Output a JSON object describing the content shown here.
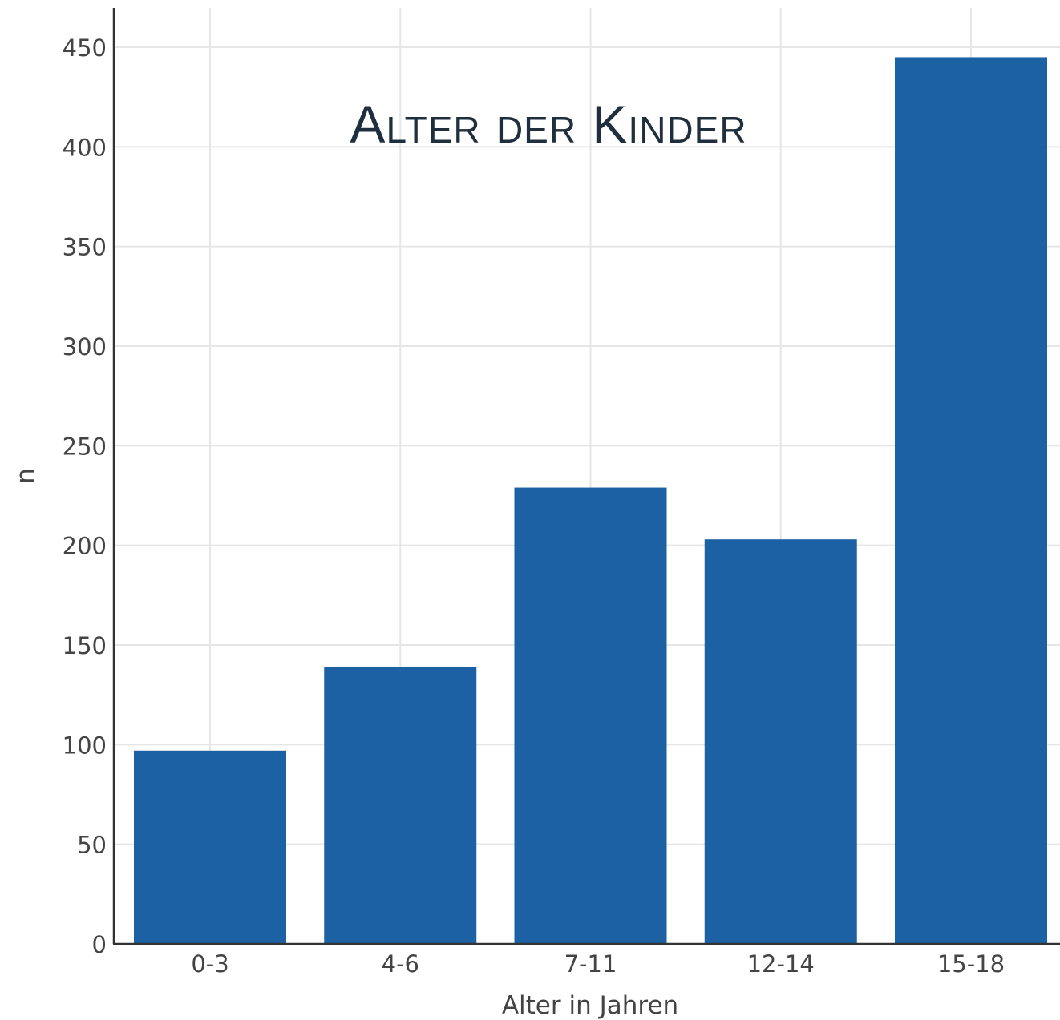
{
  "chart_data": {
    "type": "bar",
    "title": "Alter der Kinder",
    "xlabel": "Alter in Jahren",
    "ylabel": "n",
    "categories": [
      "0-3",
      "4-6",
      "7-11",
      "12-14",
      "15-18"
    ],
    "values": [
      97,
      139,
      229,
      203,
      445
    ],
    "ylim": [
      0,
      470
    ],
    "yticks": [
      0,
      50,
      100,
      150,
      200,
      250,
      300,
      350,
      400,
      450
    ],
    "grid": true,
    "legend": "none",
    "bar_color": "#1c61a4"
  }
}
